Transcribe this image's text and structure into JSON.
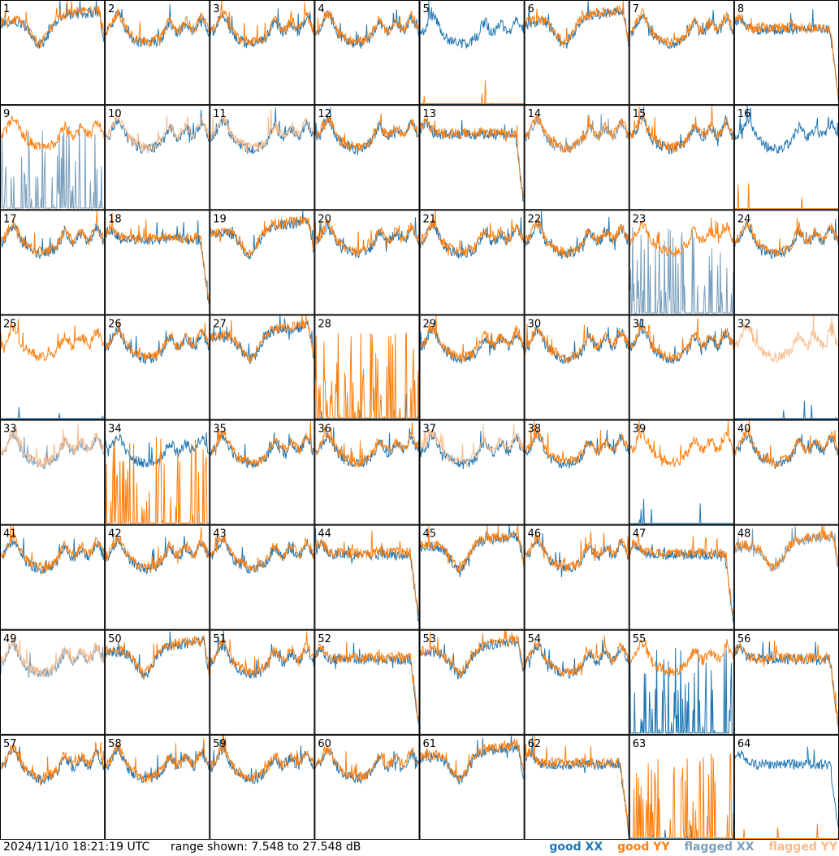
{
  "chart_data": {
    "type": "line",
    "title": "",
    "xlabel": "",
    "ylabel": "",
    "grid": {
      "rows": 8,
      "cols": 8
    },
    "y_range_db": [
      7.548,
      27.548
    ],
    "panels": [
      {
        "n": 1,
        "shape": "dip",
        "xx": "good",
        "yy": "good"
      },
      {
        "n": 2,
        "shape": "bumpy",
        "xx": "good",
        "yy": "good"
      },
      {
        "n": 3,
        "shape": "bumpy",
        "xx": "good",
        "yy": "good"
      },
      {
        "n": 4,
        "shape": "bumpy",
        "xx": "good",
        "yy": "good"
      },
      {
        "n": 5,
        "shape": "bumpy",
        "xx": "good",
        "yy": "dead"
      },
      {
        "n": 6,
        "shape": "dip",
        "xx": "good",
        "yy": "good"
      },
      {
        "n": 7,
        "shape": "bumpy",
        "xx": "good",
        "yy": "good"
      },
      {
        "n": 8,
        "shape": "flat",
        "xx": "good",
        "yy": "good"
      },
      {
        "n": 9,
        "shape": "bumpy",
        "xx": "flagged",
        "yy": "good",
        "xx_mode": "spiky"
      },
      {
        "n": 10,
        "shape": "bumpy",
        "xx": "good",
        "yy": "flagged"
      },
      {
        "n": 11,
        "shape": "bumpy",
        "xx": "good",
        "yy": "flagged"
      },
      {
        "n": 12,
        "shape": "bumpy",
        "xx": "good",
        "yy": "good"
      },
      {
        "n": 13,
        "shape": "flat",
        "xx": "good",
        "yy": "good"
      },
      {
        "n": 14,
        "shape": "bumpy",
        "xx": "flagged",
        "yy": "good"
      },
      {
        "n": 15,
        "shape": "bumpy",
        "xx": "good",
        "yy": "good"
      },
      {
        "n": 16,
        "shape": "bumpy",
        "xx": "good",
        "yy": "dead"
      },
      {
        "n": 17,
        "shape": "bumpy",
        "xx": "good",
        "yy": "good"
      },
      {
        "n": 18,
        "shape": "flat",
        "xx": "good",
        "yy": "good"
      },
      {
        "n": 19,
        "shape": "dip",
        "xx": "good",
        "yy": "good"
      },
      {
        "n": 20,
        "shape": "bumpy",
        "xx": "good",
        "yy": "good"
      },
      {
        "n": 21,
        "shape": "bumpy",
        "xx": "good",
        "yy": "good"
      },
      {
        "n": 22,
        "shape": "bumpy",
        "xx": "good",
        "yy": "good"
      },
      {
        "n": 23,
        "shape": "bumpy",
        "xx": "flagged",
        "yy": "good",
        "xx_mode": "spiky"
      },
      {
        "n": 24,
        "shape": "bumpy",
        "xx": "good",
        "yy": "good"
      },
      {
        "n": 25,
        "shape": "bumpy",
        "xx": "dead",
        "yy": "good"
      },
      {
        "n": 26,
        "shape": "bumpy",
        "xx": "good",
        "yy": "good"
      },
      {
        "n": 27,
        "shape": "dip",
        "xx": "good",
        "yy": "good"
      },
      {
        "n": 28,
        "shape": "bumpy",
        "xx": "dead",
        "yy": "good",
        "yy_mode": "spiky"
      },
      {
        "n": 29,
        "shape": "bumpy",
        "xx": "good",
        "yy": "good"
      },
      {
        "n": 30,
        "shape": "bumpy",
        "xx": "good",
        "yy": "good"
      },
      {
        "n": 31,
        "shape": "bumpy",
        "xx": "good",
        "yy": "good"
      },
      {
        "n": 32,
        "shape": "bumpy",
        "xx": "dead",
        "yy": "flagged"
      },
      {
        "n": 33,
        "shape": "bumpy",
        "xx": "flagged",
        "yy": "flagged"
      },
      {
        "n": 34,
        "shape": "bumpy",
        "xx": "good",
        "yy": "good",
        "yy_mode": "spiky"
      },
      {
        "n": 35,
        "shape": "bumpy",
        "xx": "good",
        "yy": "good"
      },
      {
        "n": 36,
        "shape": "bumpy",
        "xx": "good",
        "yy": "good"
      },
      {
        "n": 37,
        "shape": "bumpy",
        "xx": "good",
        "yy": "flagged"
      },
      {
        "n": 38,
        "shape": "bumpy",
        "xx": "good",
        "yy": "good"
      },
      {
        "n": 39,
        "shape": "bumpy",
        "xx": "dead",
        "yy": "good"
      },
      {
        "n": 40,
        "shape": "bumpy",
        "xx": "good",
        "yy": "good"
      },
      {
        "n": 41,
        "shape": "bumpy",
        "xx": "good",
        "yy": "good"
      },
      {
        "n": 42,
        "shape": "bumpy",
        "xx": "good",
        "yy": "good"
      },
      {
        "n": 43,
        "shape": "bumpy",
        "xx": "good",
        "yy": "good"
      },
      {
        "n": 44,
        "shape": "flat",
        "xx": "good",
        "yy": "good"
      },
      {
        "n": 45,
        "shape": "dip",
        "xx": "good",
        "yy": "good"
      },
      {
        "n": 46,
        "shape": "bumpy",
        "xx": "good",
        "yy": "good"
      },
      {
        "n": 47,
        "shape": "flat",
        "xx": "good",
        "yy": "good"
      },
      {
        "n": 48,
        "shape": "dip",
        "xx": "flagged",
        "yy": "good"
      },
      {
        "n": 49,
        "shape": "bumpy",
        "xx": "flagged",
        "yy": "flagged"
      },
      {
        "n": 50,
        "shape": "dip",
        "xx": "good",
        "yy": "good"
      },
      {
        "n": 51,
        "shape": "bumpy",
        "xx": "good",
        "yy": "good"
      },
      {
        "n": 52,
        "shape": "flat",
        "xx": "good",
        "yy": "good"
      },
      {
        "n": 53,
        "shape": "dip",
        "xx": "good",
        "yy": "good"
      },
      {
        "n": 54,
        "shape": "bumpy",
        "xx": "good",
        "yy": "good"
      },
      {
        "n": 55,
        "shape": "bumpy",
        "xx": "good",
        "yy": "good",
        "xx_mode": "spiky"
      },
      {
        "n": 56,
        "shape": "flat",
        "xx": "good",
        "yy": "good"
      },
      {
        "n": 57,
        "shape": "bumpy",
        "xx": "good",
        "yy": "good"
      },
      {
        "n": 58,
        "shape": "bumpy",
        "xx": "good",
        "yy": "good"
      },
      {
        "n": 59,
        "shape": "bumpy",
        "xx": "good",
        "yy": "good"
      },
      {
        "n": 60,
        "shape": "bumpy",
        "xx": "good",
        "yy": "good"
      },
      {
        "n": 61,
        "shape": "dip",
        "xx": "good",
        "yy": "good"
      },
      {
        "n": 62,
        "shape": "flat",
        "xx": "good",
        "yy": "good"
      },
      {
        "n": 63,
        "shape": "bumpy",
        "xx": "dead",
        "yy": "good",
        "yy_mode": "spiky"
      },
      {
        "n": 64,
        "shape": "flat",
        "xx": "good",
        "yy": "dead"
      }
    ]
  },
  "footer": {
    "timestamp": "2024/11/10 18:21:19 UTC",
    "range_text": "range shown: 7.548 to 27.548 dB"
  },
  "legend": {
    "good_xx": "good XX",
    "good_yy": "good YY",
    "flagged_xx": "flagged XX",
    "flagged_yy": "flagged YY"
  },
  "colors": {
    "good_xx": "#1f77b4",
    "good_yy": "#ff7f0e",
    "flagged_xx": "#7a9fbd",
    "flagged_yy": "#f9bb8c"
  }
}
